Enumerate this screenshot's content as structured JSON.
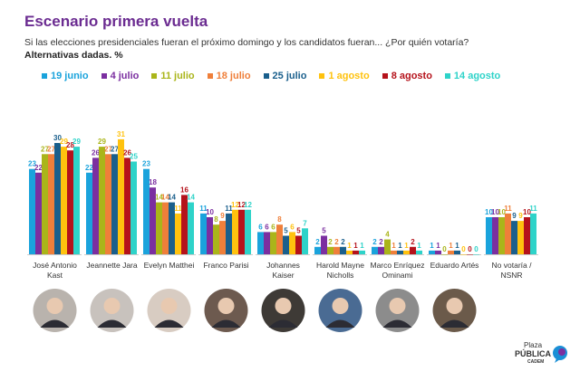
{
  "title": "Escenario primera vuelta",
  "subtitle": "Si las elecciones presidenciales fueran el próximo domingo y los candidatos fueran... ¿Por quién votaría?",
  "note": "Alternativas dadas. %",
  "logo": {
    "line1": "Plaza",
    "line2": "PÚBLICA",
    "line3": "CADEM"
  },
  "chart_data": {
    "type": "bar",
    "categories": [
      [
        "José Antonio",
        "Kast"
      ],
      [
        "Jeannette Jara"
      ],
      [
        "Evelyn Matthei"
      ],
      [
        "Franco Parisi"
      ],
      [
        "Johannes",
        "Kaiser"
      ],
      [
        "Harold Mayne",
        "Nicholls"
      ],
      [
        "Marco Enríquez",
        "Ominami"
      ],
      [
        "Eduardo Artés"
      ],
      [
        "No votaría /",
        "NSNR"
      ]
    ],
    "series": [
      {
        "name": "19 junio",
        "color": "#1aa3dc",
        "values": [
          23,
          22,
          23,
          11,
          6,
          2,
          2,
          1,
          10
        ]
      },
      {
        "name": "4 julio",
        "color": "#7b2fa0",
        "values": [
          22,
          26,
          18,
          10,
          6,
          5,
          2,
          1,
          10
        ]
      },
      {
        "name": "11 julio",
        "color": "#aab51a",
        "values": [
          27,
          29,
          14,
          8,
          6,
          2,
          4,
          0,
          10
        ]
      },
      {
        "name": "18 julio",
        "color": "#ef7f3a",
        "values": [
          27,
          27,
          14,
          9,
          8,
          2,
          1,
          1,
          11
        ]
      },
      {
        "name": "25 julio",
        "color": "#1a5f8c",
        "values": [
          30,
          27,
          14,
          11,
          5,
          2,
          1,
          1,
          9
        ]
      },
      {
        "name": "1 agosto",
        "color": "#ffc20e",
        "values": [
          29,
          31,
          11,
          12,
          6,
          1,
          1,
          0,
          9
        ]
      },
      {
        "name": "8 agosto",
        "color": "#b5121b",
        "values": [
          28,
          26,
          16,
          12,
          5,
          1,
          2,
          0,
          10
        ]
      },
      {
        "name": "14 agosto",
        "color": "#2ed3c9",
        "values": [
          29,
          25,
          14,
          12,
          7,
          1,
          1,
          0,
          11
        ]
      }
    ],
    "ylim": [
      0,
      31
    ],
    "grid": false,
    "legend": "top",
    "data_labels": true
  }
}
